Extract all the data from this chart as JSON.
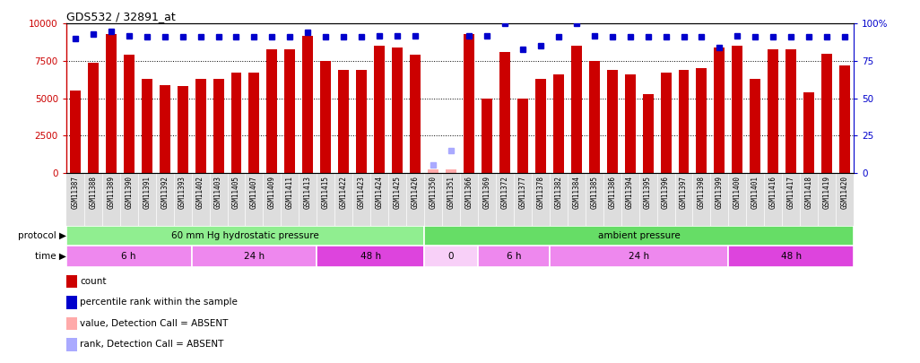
{
  "title": "GDS532 / 32891_at",
  "samples": [
    "GSM11387",
    "GSM11388",
    "GSM11389",
    "GSM11390",
    "GSM11391",
    "GSM11392",
    "GSM11393",
    "GSM11402",
    "GSM11403",
    "GSM11405",
    "GSM11407",
    "GSM11409",
    "GSM11411",
    "GSM11413",
    "GSM11415",
    "GSM11422",
    "GSM11423",
    "GSM11424",
    "GSM11425",
    "GSM11426",
    "GSM11350",
    "GSM11351",
    "GSM11366",
    "GSM11369",
    "GSM11372",
    "GSM11377",
    "GSM11378",
    "GSM11382",
    "GSM11384",
    "GSM11385",
    "GSM11386",
    "GSM11394",
    "GSM11395",
    "GSM11396",
    "GSM11397",
    "GSM11398",
    "GSM11399",
    "GSM11400",
    "GSM11401",
    "GSM11416",
    "GSM11417",
    "GSM11418",
    "GSM11419",
    "GSM11420"
  ],
  "counts": [
    5500,
    7400,
    9300,
    7900,
    6300,
    5900,
    5800,
    6300,
    6300,
    6700,
    6700,
    8300,
    8300,
    9200,
    7500,
    6900,
    6900,
    8500,
    8400,
    7900,
    200,
    200,
    9300,
    5000,
    8100,
    5000,
    6300,
    6600,
    8500,
    7500,
    6900,
    6600,
    5300,
    6700,
    6900,
    7000,
    8400,
    8500,
    6300,
    8300,
    8300,
    5400,
    8000,
    7200
  ],
  "percentile_ranks": [
    90,
    93,
    95,
    92,
    91,
    91,
    91,
    91,
    91,
    91,
    91,
    91,
    91,
    94,
    91,
    91,
    91,
    92,
    92,
    92,
    5,
    15,
    92,
    92,
    100,
    83,
    85,
    91,
    100,
    92,
    91,
    91,
    91,
    91,
    91,
    91,
    84,
    92,
    91,
    91,
    91,
    91,
    91,
    91
  ],
  "absent_mask": [
    false,
    false,
    false,
    false,
    false,
    false,
    false,
    false,
    false,
    false,
    false,
    false,
    false,
    false,
    false,
    false,
    false,
    false,
    false,
    false,
    true,
    true,
    false,
    false,
    false,
    false,
    false,
    false,
    false,
    false,
    false,
    false,
    false,
    false,
    false,
    false,
    false,
    false,
    false,
    false,
    false,
    false,
    false,
    false
  ],
  "absent_ranks": [
    null,
    null,
    null,
    null,
    null,
    null,
    null,
    null,
    null,
    null,
    null,
    null,
    null,
    null,
    null,
    null,
    null,
    null,
    null,
    null,
    5,
    15,
    null,
    null,
    null,
    null,
    null,
    null,
    null,
    null,
    null,
    null,
    null,
    null,
    null,
    null,
    null,
    null,
    null,
    null,
    null,
    null,
    null,
    null
  ],
  "protocol_groups": [
    {
      "label": "60 mm Hg hydrostatic pressure",
      "start": 0,
      "end": 19,
      "color": "#90EE90"
    },
    {
      "label": "ambient pressure",
      "start": 20,
      "end": 43,
      "color": "#66DD66"
    }
  ],
  "time_groups": [
    {
      "label": "6 h",
      "start": 0,
      "end": 6,
      "color": "#EE88EE"
    },
    {
      "label": "24 h",
      "start": 7,
      "end": 13,
      "color": "#EE88EE"
    },
    {
      "label": "48 h",
      "start": 14,
      "end": 19,
      "color": "#DD44DD"
    },
    {
      "label": "0",
      "start": 20,
      "end": 22,
      "color": "#F8D0F8"
    },
    {
      "label": "6 h",
      "start": 23,
      "end": 26,
      "color": "#EE88EE"
    },
    {
      "label": "24 h",
      "start": 27,
      "end": 36,
      "color": "#EE88EE"
    },
    {
      "label": "48 h",
      "start": 37,
      "end": 43,
      "color": "#DD44DD"
    }
  ],
  "bar_color": "#CC0000",
  "absent_bar_color": "#FFAAAA",
  "dot_color": "#0000CC",
  "absent_dot_color": "#AAAAFF",
  "ylim_left": [
    0,
    10000
  ],
  "ylim_right": [
    0,
    100
  ],
  "yticks_left": [
    0,
    2500,
    5000,
    7500,
    10000
  ],
  "yticks_right": [
    0,
    25,
    50,
    75,
    100
  ],
  "ticklabel_bg": "#DDDDDD",
  "chart_bg": "#FFFFFF"
}
